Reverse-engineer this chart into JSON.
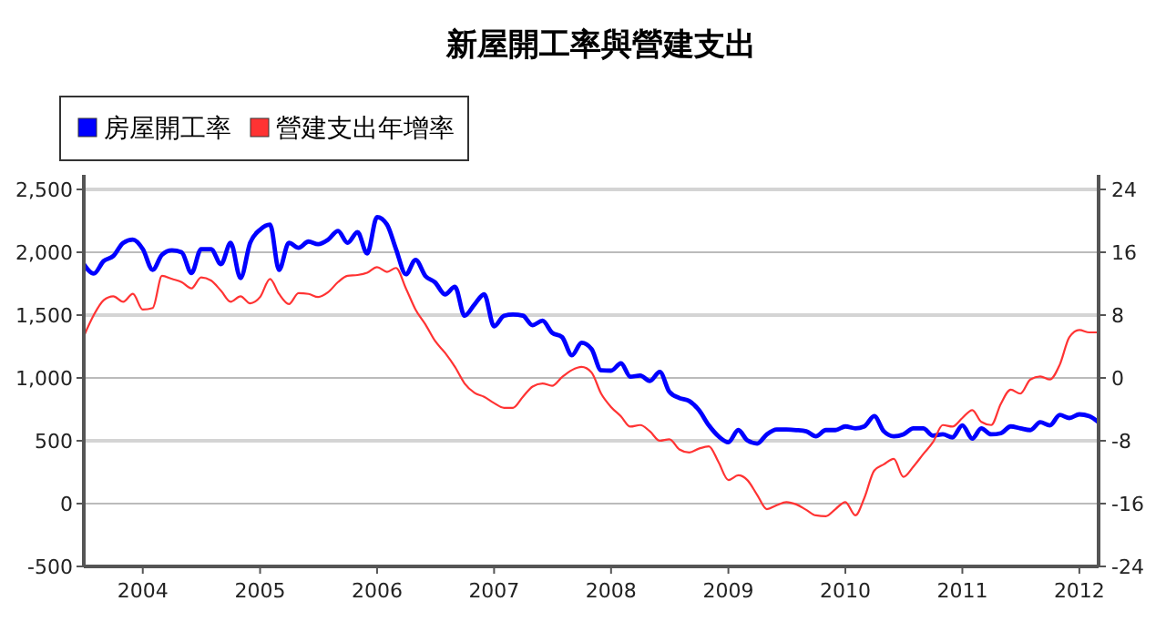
{
  "chart_data": {
    "type": "line",
    "title": "新屋開工率與營建支出",
    "x": [
      "2003-07",
      "2003-08",
      "2003-09",
      "2003-10",
      "2003-11",
      "2003-12",
      "2004-01",
      "2004-02",
      "2004-03",
      "2004-04",
      "2004-05",
      "2004-06",
      "2004-07",
      "2004-08",
      "2004-09",
      "2004-10",
      "2004-11",
      "2004-12",
      "2005-01",
      "2005-02",
      "2005-03",
      "2005-04",
      "2005-05",
      "2005-06",
      "2005-07",
      "2005-08",
      "2005-09",
      "2005-10",
      "2005-11",
      "2005-12",
      "2006-01",
      "2006-02",
      "2006-03",
      "2006-04",
      "2006-05",
      "2006-06",
      "2006-07",
      "2006-08",
      "2006-09",
      "2006-10",
      "2006-11",
      "2006-12",
      "2007-01",
      "2007-02",
      "2007-03",
      "2007-04",
      "2007-05",
      "2007-06",
      "2007-07",
      "2007-08",
      "2007-09",
      "2007-10",
      "2007-11",
      "2007-12",
      "2008-01",
      "2008-02",
      "2008-03",
      "2008-04",
      "2008-05",
      "2008-06",
      "2008-07",
      "2008-08",
      "2008-09",
      "2008-10",
      "2008-11",
      "2008-12",
      "2009-01",
      "2009-02",
      "2009-03",
      "2009-04",
      "2009-05",
      "2009-06",
      "2009-07",
      "2009-08",
      "2009-09",
      "2009-10",
      "2009-11",
      "2009-12",
      "2010-01",
      "2010-02",
      "2010-03",
      "2010-04",
      "2010-05",
      "2010-06",
      "2010-07",
      "2010-08",
      "2010-09",
      "2010-10",
      "2010-11",
      "2010-12",
      "2011-01",
      "2011-02",
      "2011-03",
      "2011-04",
      "2011-05",
      "2011-06",
      "2011-07",
      "2011-08",
      "2011-09",
      "2011-10",
      "2011-11",
      "2011-12",
      "2012-01",
      "2012-02",
      "2012-03"
    ],
    "series": [
      {
        "name": "房屋開工率",
        "color": "#0000ff",
        "values": [
          1905,
          1830,
          1930,
          1970,
          2075,
          2100,
          2025,
          1860,
          1980,
          2015,
          2000,
          1835,
          2025,
          2025,
          1905,
          2075,
          1795,
          2075,
          2180,
          2220,
          1860,
          2075,
          2035,
          2085,
          2065,
          2100,
          2170,
          2075,
          2160,
          1990,
          2280,
          2220,
          2025,
          1825,
          1940,
          1810,
          1760,
          1665,
          1725,
          1495,
          1585,
          1665,
          1410,
          1495,
          1505,
          1495,
          1420,
          1455,
          1360,
          1325,
          1180,
          1280,
          1230,
          1060,
          1058,
          1116,
          1010,
          1019,
          976,
          1048,
          889,
          840,
          816,
          744,
          623,
          536,
          488,
          585,
          503,
          478,
          551,
          589,
          589,
          585,
          575,
          536,
          585,
          585,
          614,
          599,
          614,
          696,
          575,
          536,
          551,
          599,
          599,
          541,
          551,
          527,
          623,
          517,
          599,
          551,
          560,
          614,
          599,
          585,
          647,
          623,
          705,
          681,
          710,
          696,
          647
        ]
      },
      {
        "name": "營建支出年增率",
        "color": "#ff3333",
        "axis": "y2",
        "values": [
          5.3,
          8.0,
          9.9,
          10.4,
          9.7,
          10.7,
          8.7,
          8.9,
          13.0,
          12.6,
          12.2,
          11.4,
          12.8,
          12.4,
          11.1,
          9.7,
          10.4,
          9.5,
          10.3,
          12.6,
          10.7,
          9.4,
          10.8,
          10.7,
          10.3,
          10.9,
          12.2,
          13.0,
          13.1,
          13.4,
          14.1,
          13.5,
          14.0,
          11.4,
          8.7,
          6.8,
          4.7,
          3.2,
          1.4,
          -0.7,
          -1.9,
          -2.4,
          -3.2,
          -3.8,
          -3.8,
          -2.4,
          -1.1,
          -0.7,
          -1.0,
          0.1,
          1.0,
          1.4,
          0.7,
          -2.0,
          -3.7,
          -4.9,
          -6.2,
          -6.0,
          -6.8,
          -8.0,
          -7.8,
          -9.1,
          -9.5,
          -9.0,
          -8.7,
          -10.7,
          -13.0,
          -12.4,
          -13.0,
          -14.9,
          -16.7,
          -16.2,
          -15.8,
          -16.1,
          -16.8,
          -17.5,
          -17.6,
          -16.7,
          -15.8,
          -17.5,
          -15.3,
          -11.8,
          -11.0,
          -10.3,
          -12.6,
          -11.3,
          -9.7,
          -8.2,
          -6.0,
          -6.2,
          -5.1,
          -4.1,
          -5.6,
          -6.0,
          -3.3,
          -1.5,
          -2.0,
          -0.2,
          0.2,
          -0.2,
          1.7,
          5.2,
          6.1,
          5.8,
          5.8
        ]
      }
    ],
    "xlim": [
      "2003-07",
      "2012-03"
    ],
    "xticks": [
      {
        "value": "2004-01",
        "label": "2004"
      },
      {
        "value": "2005-01",
        "label": "2005"
      },
      {
        "value": "2006-01",
        "label": "2006"
      },
      {
        "value": "2007-01",
        "label": "2007"
      },
      {
        "value": "2008-01",
        "label": "2008"
      },
      {
        "value": "2009-01",
        "label": "2009"
      },
      {
        "value": "2010-01",
        "label": "2010"
      },
      {
        "value": "2011-01",
        "label": "2011"
      },
      {
        "value": "2012-01",
        "label": "2012"
      }
    ],
    "ylim": [
      -500,
      2500
    ],
    "yticks": [
      {
        "value": -500,
        "label": "-500"
      },
      {
        "value": 0,
        "label": "0"
      },
      {
        "value": 500,
        "label": "500"
      },
      {
        "value": 1000,
        "label": "1,000"
      },
      {
        "value": 1500,
        "label": "1,500"
      },
      {
        "value": 2000,
        "label": "2,000"
      },
      {
        "value": 2500,
        "label": "2,500"
      }
    ],
    "y2lim": [
      -24,
      24
    ],
    "y2ticks": [
      -24,
      -16,
      -8,
      0,
      8,
      16,
      24
    ],
    "grid": "y",
    "legend": "top left",
    "marker": "none",
    "line_style": "solid"
  }
}
